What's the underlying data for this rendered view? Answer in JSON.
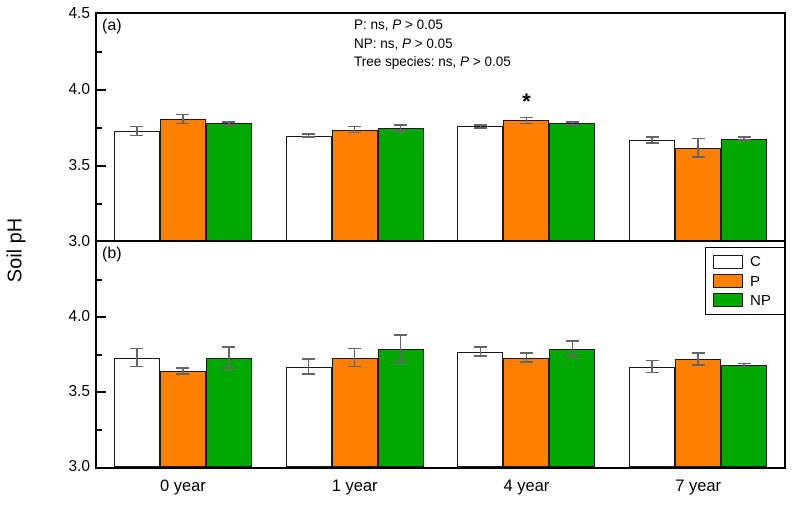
{
  "figure": {
    "y_axis_title": "Soil pH",
    "panels": [
      {
        "label": "(a)"
      },
      {
        "label": "(b)"
      }
    ],
    "annotation_lines": [
      [
        {
          "t": "P: ns, "
        },
        {
          "t": "P",
          "i": true
        },
        {
          "t": " > 0.05"
        }
      ],
      [
        {
          "t": "NP: ns, "
        },
        {
          "t": "P",
          "i": true
        },
        {
          "t": " > 0.05"
        }
      ],
      [
        {
          "t": "Tree species: ns, "
        },
        {
          "t": "P",
          "i": true
        },
        {
          "t": " > 0.05"
        }
      ]
    ],
    "legend": {
      "items": [
        {
          "label": "C",
          "color": "#ffffff"
        },
        {
          "label": "P",
          "color": "#ff8000"
        },
        {
          "label": "NP",
          "color": "#00a800"
        }
      ]
    },
    "colors": {
      "frame": "#000000",
      "bar_border": "#1a1a1a",
      "error_bar": "#666666",
      "bar_white": "#ffffff",
      "bar_orange": "#ff8000",
      "bar_green": "#00a800"
    }
  },
  "chart_data": [
    {
      "type": "bar",
      "panel": "a",
      "title": "",
      "xlabel": "",
      "ylabel": "Soil pH",
      "categories": [
        "0 year",
        "1 year",
        "4 year",
        "7 year"
      ],
      "series": [
        {
          "name": "C",
          "color": "#ffffff",
          "values": [
            3.73,
            3.7,
            3.76,
            3.67
          ],
          "errors": [
            0.03,
            0.01,
            0.01,
            0.02
          ]
        },
        {
          "name": "P",
          "color": "#ff8000",
          "values": [
            3.81,
            3.74,
            3.8,
            3.62
          ],
          "errors": [
            0.03,
            0.02,
            0.02,
            0.06
          ]
        },
        {
          "name": "NP",
          "color": "#00a800",
          "values": [
            3.78,
            3.75,
            3.78,
            3.68
          ],
          "errors": [
            0.01,
            0.02,
            0.01,
            0.01
          ]
        }
      ],
      "ylim": [
        3.0,
        4.5
      ],
      "yticks": [
        {
          "v": 4.5,
          "label": "4.5"
        },
        {
          "v": 4.0,
          "label": "4.0"
        },
        {
          "v": 3.5,
          "label": "3.5"
        },
        {
          "v": 3.0,
          "label": "3.0"
        }
      ],
      "minor_yticks": [
        4.25,
        3.75,
        3.25
      ],
      "grid": false,
      "significance": [
        {
          "category_index": 2,
          "series_index": 1,
          "symbol": "*"
        }
      ]
    },
    {
      "type": "bar",
      "panel": "b",
      "title": "",
      "xlabel": "",
      "ylabel": "Soil pH",
      "categories": [
        "0 year",
        "1 year",
        "4 year",
        "7 year"
      ],
      "series": [
        {
          "name": "C",
          "color": "#ffffff",
          "values": [
            3.73,
            3.67,
            3.77,
            3.67
          ],
          "errors": [
            0.06,
            0.05,
            0.03,
            0.04
          ]
        },
        {
          "name": "P",
          "color": "#ff8000",
          "values": [
            3.64,
            3.73,
            3.73,
            3.72
          ],
          "errors": [
            0.02,
            0.06,
            0.03,
            0.04
          ]
        },
        {
          "name": "NP",
          "color": "#00a800",
          "values": [
            3.73,
            3.79,
            3.79,
            3.68
          ],
          "errors": [
            0.07,
            0.09,
            0.05,
            0.01
          ]
        }
      ],
      "ylim": [
        3.0,
        4.5
      ],
      "yticks": [
        {
          "v": 4.0,
          "label": "4.0"
        },
        {
          "v": 3.5,
          "label": "3.5"
        },
        {
          "v": 3.0,
          "label": "3.0"
        }
      ],
      "minor_yticks": [
        4.25,
        3.75,
        3.25
      ],
      "grid": false,
      "significance": []
    }
  ]
}
